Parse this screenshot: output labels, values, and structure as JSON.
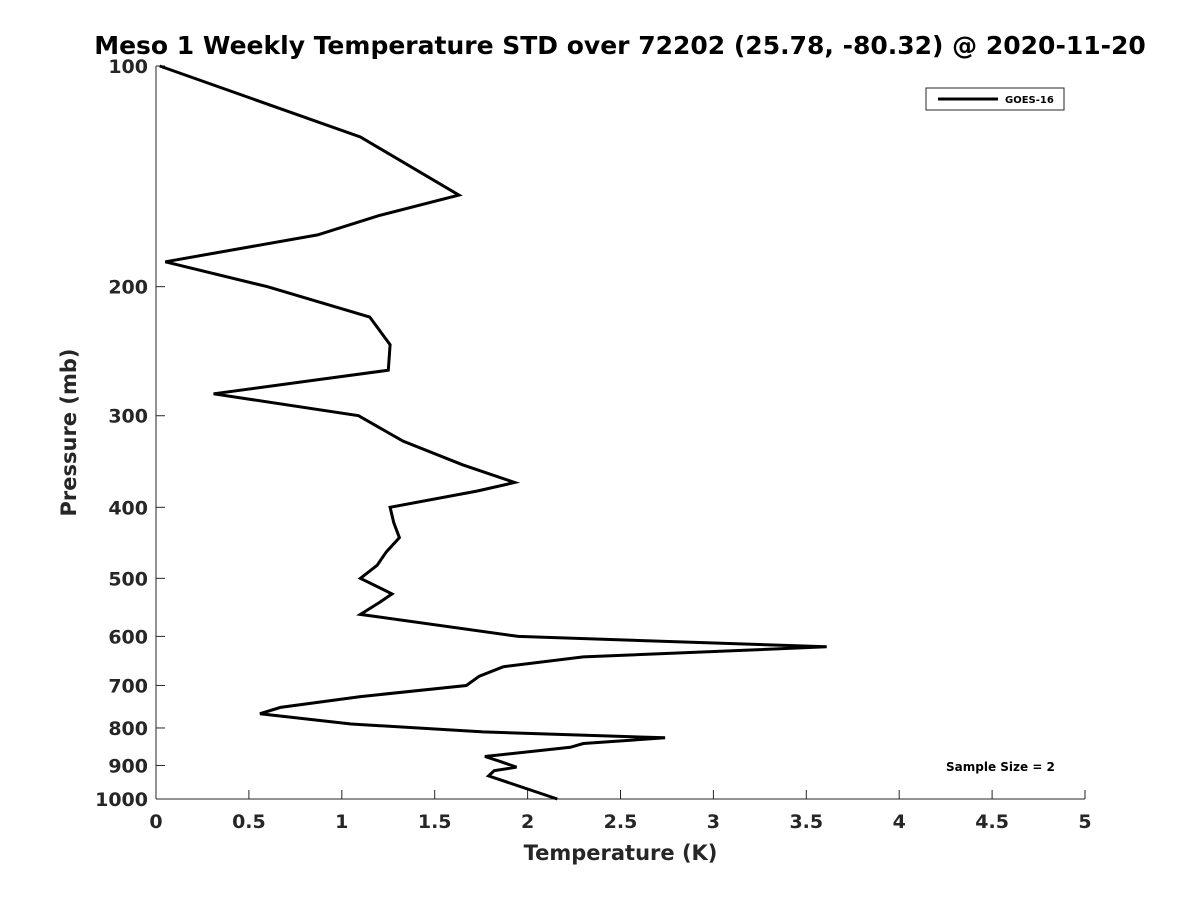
{
  "chart_data": {
    "type": "line",
    "title": "Meso 1 Weekly Temperature STD over 72202 (25.78, -80.32) @ 2020-11-20",
    "xlabel": "Temperature (K)",
    "ylabel": "Pressure (mb)",
    "xlim": [
      0,
      5
    ],
    "ylim": [
      100,
      1000
    ],
    "y_scale": "log",
    "y_direction": "reverse",
    "x_ticks": [
      0,
      0.5,
      1,
      1.5,
      2,
      2.5,
      3,
      3.5,
      4,
      4.5,
      5
    ],
    "x_tick_labels": [
      "0",
      "0.5",
      "1",
      "1.5",
      "2",
      "2.5",
      "3",
      "3.5",
      "4",
      "4.5",
      "5"
    ],
    "y_ticks": [
      100,
      200,
      300,
      400,
      500,
      600,
      700,
      800,
      900,
      1000
    ],
    "y_tick_labels": [
      "100",
      "200",
      "300",
      "400",
      "500",
      "600",
      "700",
      "800",
      "900",
      "1000"
    ],
    "grid": false,
    "legend_position": "top-right",
    "series": [
      {
        "name": "GOES-16",
        "color": "#000000",
        "points": [
          [
            0.02,
            100
          ],
          [
            1.1,
            125
          ],
          [
            1.63,
            150
          ],
          [
            1.2,
            160
          ],
          [
            0.87,
            170
          ],
          [
            0.05,
            185
          ],
          [
            0.6,
            200
          ],
          [
            1.15,
            220
          ],
          [
            1.26,
            240
          ],
          [
            1.25,
            260
          ],
          [
            0.31,
            280
          ],
          [
            1.09,
            300
          ],
          [
            1.33,
            325
          ],
          [
            1.65,
            350
          ],
          [
            1.93,
            370
          ],
          [
            1.73,
            380
          ],
          [
            1.26,
            400
          ],
          [
            1.28,
            420
          ],
          [
            1.31,
            440
          ],
          [
            1.24,
            460
          ],
          [
            1.19,
            480
          ],
          [
            1.1,
            500
          ],
          [
            1.27,
            525
          ],
          [
            1.2,
            540
          ],
          [
            1.1,
            560
          ],
          [
            1.95,
            600
          ],
          [
            3.61,
            620
          ],
          [
            2.3,
            640
          ],
          [
            1.87,
            660
          ],
          [
            1.74,
            680
          ],
          [
            1.67,
            700
          ],
          [
            1.1,
            725
          ],
          [
            0.67,
            750
          ],
          [
            0.56,
            765
          ],
          [
            1.05,
            790
          ],
          [
            1.76,
            810
          ],
          [
            2.74,
            825
          ],
          [
            2.3,
            840
          ],
          [
            2.23,
            850
          ],
          [
            1.77,
            875
          ],
          [
            1.86,
            890
          ],
          [
            1.94,
            905
          ],
          [
            1.82,
            915
          ],
          [
            1.79,
            930
          ],
          [
            2.16,
            1000
          ]
        ]
      }
    ],
    "annotations": [
      "Sample Size = 2"
    ]
  }
}
